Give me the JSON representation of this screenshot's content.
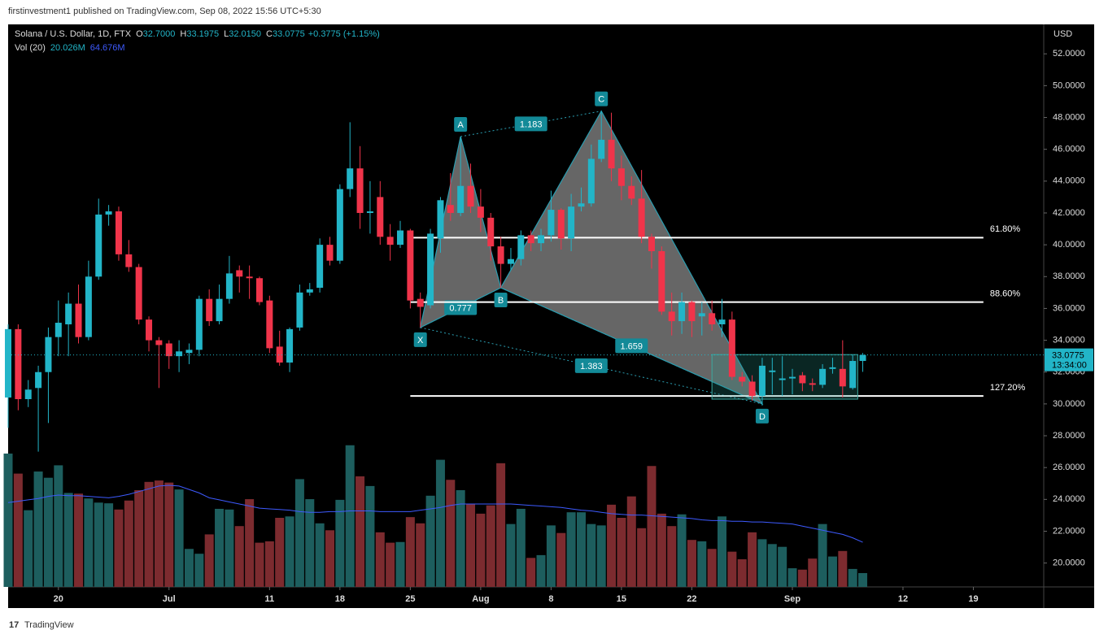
{
  "header": {
    "publisher": "firstinvestment1 published on TradingView.com, Sep 08, 2022 15:56 UTC+5:30",
    "footer": "TradingView"
  },
  "chart_data": {
    "type": "candlestick",
    "title": "Solana / U.S. Dollar, 1D, FTX",
    "ohlc_legend": [
      {
        "label": "O",
        "value": "32.7000"
      },
      {
        "label": "H",
        "value": "33.1975"
      },
      {
        "label": "L",
        "value": "32.0150"
      },
      {
        "label": "C",
        "value": "33.0775"
      }
    ],
    "change": "+0.3775 (+1.15%)",
    "volume_legend": {
      "label": "Vol (20)",
      "value": "20.026M",
      "ma": "64.676M"
    },
    "axis_unit": "USD",
    "last_price": {
      "value": 33.0775,
      "label": "33.0775",
      "countdown": "13:34:00"
    },
    "up_color": "#22b5c8",
    "down_color": "#f0344a",
    "xlim": [
      0,
      103
    ],
    "xticks": [
      {
        "value": 5,
        "label": "20"
      },
      {
        "value": 16,
        "label": "Jul"
      },
      {
        "value": 26,
        "label": "11"
      },
      {
        "value": 33,
        "label": "18"
      },
      {
        "value": 40,
        "label": "25"
      },
      {
        "value": 47,
        "label": "Aug"
      },
      {
        "value": 54,
        "label": "8"
      },
      {
        "value": 61,
        "label": "15"
      },
      {
        "value": 68,
        "label": "22"
      },
      {
        "value": 78,
        "label": "Sep"
      },
      {
        "value": 89,
        "label": "12"
      },
      {
        "value": 96,
        "label": "19"
      }
    ],
    "ylim": [
      18.5,
      53.85
    ],
    "yticks": [
      {
        "value": 20,
        "label": "20.0000"
      },
      {
        "value": 22,
        "label": "22.0000"
      },
      {
        "value": 24,
        "label": "24.0000"
      },
      {
        "value": 26,
        "label": "26.0000"
      },
      {
        "value": 28,
        "label": "28.0000"
      },
      {
        "value": 30,
        "label": "30.0000"
      },
      {
        "value": 32,
        "label": "32.0000"
      },
      {
        "value": 34,
        "label": "34.0000"
      },
      {
        "value": 36,
        "label": "36.0000"
      },
      {
        "value": 38,
        "label": "38.0000"
      },
      {
        "value": 40,
        "label": "40.0000"
      },
      {
        "value": 42,
        "label": "42.0000"
      },
      {
        "value": 44,
        "label": "44.0000"
      },
      {
        "value": 46,
        "label": "46.0000"
      },
      {
        "value": 48,
        "label": "48.0000"
      },
      {
        "value": 50,
        "label": "50.0000"
      },
      {
        "value": 52,
        "label": "52.0000"
      }
    ],
    "candles": {
      "open": [
        30.4,
        34.7,
        30.3,
        31,
        32,
        34.2,
        35,
        36.3,
        34.2,
        38,
        41.9,
        42.1,
        39.4,
        38.6,
        35.3,
        34,
        33.8,
        33,
        33.2,
        33.4,
        36.6,
        35.2,
        36.6,
        38.4,
        38,
        37.9,
        36.5,
        33.6,
        32.6,
        34.8,
        37,
        37.3,
        40,
        39,
        43.5,
        44.8,
        42,
        43,
        40.5,
        40,
        40.9,
        36.6,
        36.2,
        40.4,
        42.5,
        42,
        43.7,
        42.4,
        41.7,
        39.9,
        38.8,
        39.1,
        40.6,
        40.1,
        40.6,
        42.2,
        40.4,
        42.4,
        42.6,
        45.4,
        46.6,
        44.8,
        43.7,
        42.9,
        40.5,
        39.6,
        35.8,
        35.2,
        36.4,
        35.5,
        35.7,
        35,
        35.3,
        31.7,
        31.4,
        30.5,
        32,
        31.5,
        31.6,
        31.8,
        31.3,
        31.2,
        32.2,
        32.2,
        31,
        32.7
      ],
      "high": [
        35,
        35,
        31.5,
        32.4,
        34.8,
        36.5,
        37,
        37.5,
        39,
        42.9,
        42.5,
        42.4,
        40.3,
        38.8,
        35.5,
        34.2,
        34,
        34,
        33.8,
        36.8,
        37.2,
        37.5,
        39.3,
        38.7,
        38.7,
        38,
        36.8,
        34.6,
        34.8,
        37.5,
        37.6,
        40.4,
        40.5,
        43.8,
        47.7,
        46.2,
        44,
        44,
        41.3,
        41.5,
        41,
        37,
        41,
        43,
        44.5,
        46.8,
        45.1,
        43.5,
        42,
        40.5,
        39.8,
        40.9,
        40.9,
        41,
        43.4,
        42.3,
        43.2,
        43.6,
        46.3,
        48.4,
        48.3,
        45.6,
        44.3,
        44.7,
        40.7,
        39.9,
        37,
        37,
        36.5,
        36.4,
        36.5,
        36.6,
        35.8,
        32,
        31.8,
        32.9,
        32.9,
        33,
        32.2,
        32,
        31.6,
        32.5,
        32.9,
        34,
        33.1,
        33.1975
      ],
      "low": [
        28.5,
        29.6,
        29.8,
        27,
        28.8,
        33,
        33,
        33.8,
        34,
        37.8,
        41.2,
        39,
        38.3,
        35,
        33.3,
        31,
        32.2,
        32,
        32.5,
        33,
        34.9,
        35,
        36.3,
        37,
        36.6,
        36.2,
        33.2,
        32.4,
        32,
        34.6,
        36.8,
        37,
        38.7,
        38.8,
        43,
        41,
        40.7,
        40,
        39,
        39.8,
        36,
        34.8,
        36,
        39.5,
        41.5,
        41.8,
        42,
        40.8,
        39,
        37.3,
        38.4,
        38.7,
        39.6,
        39.6,
        40.2,
        39.7,
        39.6,
        42.1,
        42.4,
        45.2,
        44,
        42.8,
        42.5,
        40.1,
        38.5,
        35.6,
        34.3,
        34.4,
        34.2,
        34.3,
        34.6,
        34.2,
        31.5,
        31.1,
        30.2,
        29.9,
        30.6,
        30.5,
        30.6,
        30.8,
        30.8,
        31,
        31.9,
        30.4,
        30.9,
        32.015
      ],
      "close": [
        34.7,
        30.3,
        30.9,
        32,
        34.2,
        35.1,
        36.3,
        34.2,
        38,
        41.9,
        42.1,
        39.4,
        38.6,
        35.3,
        34,
        33.7,
        33,
        33.3,
        33.4,
        36.6,
        35.2,
        36.6,
        38.2,
        38,
        37.9,
        36.4,
        33.5,
        32.6,
        34.7,
        37,
        37.2,
        40,
        39,
        43.5,
        44.8,
        42,
        42.1,
        40.5,
        40,
        40.9,
        36.5,
        36.1,
        40.7,
        42.8,
        42,
        43.7,
        42.4,
        41.7,
        39.9,
        38.8,
        39.1,
        40.6,
        40.1,
        40.6,
        42.2,
        40.4,
        42.4,
        42.6,
        45.4,
        46.6,
        44.8,
        43.7,
        42.9,
        40.5,
        39.6,
        35.8,
        35.2,
        36.4,
        35.2,
        35.7,
        35,
        35.3,
        31.7,
        31.4,
        30.5,
        32.4,
        32.1,
        31.6,
        31.7,
        31.3,
        31.2,
        32.2,
        32.3,
        31.1,
        32.7,
        33.0775
      ]
    },
    "volume": {
      "ylim": [
        0,
        240
      ],
      "up_color": "#1d5e5e",
      "down_color": "#7c2b2f",
      "ma_color": "#3d5afe",
      "values": [
        193,
        164,
        111,
        167,
        158,
        176,
        136,
        135,
        128,
        122,
        121,
        112,
        125,
        140,
        152,
        154,
        151,
        141,
        55,
        48,
        76,
        113,
        112,
        88,
        127,
        64,
        66,
        100,
        102,
        156,
        127,
        92,
        82,
        126,
        205,
        160,
        146,
        79,
        64,
        65,
        101,
        92,
        132,
        184,
        155,
        140,
        120,
        106,
        118,
        179,
        91,
        113,
        42,
        46,
        89,
        78,
        108,
        108,
        91,
        89,
        119,
        100,
        131,
        85,
        175,
        106,
        88,
        105,
        68,
        66,
        55,
        102,
        51,
        40,
        79,
        69,
        62,
        58,
        27,
        25,
        41,
        91,
        44,
        52,
        26,
        20.026
      ],
      "ma": [
        122,
        124,
        126,
        128,
        131,
        133,
        132,
        132,
        131,
        130,
        129,
        131,
        134,
        138,
        142,
        146,
        147,
        146,
        141,
        136,
        129,
        126,
        123,
        120,
        117,
        114,
        113,
        112,
        111,
        109,
        108,
        108,
        109,
        109,
        110,
        110,
        110,
        109,
        109,
        109,
        109,
        111,
        113,
        115,
        118,
        120,
        120,
        120,
        120,
        120,
        120,
        119,
        118,
        117,
        116,
        115,
        113,
        111,
        110,
        108,
        106,
        105,
        104,
        104,
        103,
        102,
        101,
        100,
        99,
        97,
        96,
        96,
        95,
        95,
        94,
        94,
        93,
        92,
        91,
        88,
        85,
        82,
        79,
        76,
        71,
        64.676
      ]
    },
    "pattern": {
      "points": [
        {
          "label": "X",
          "x": 41,
          "y": 34.8
        },
        {
          "label": "A",
          "x": 45,
          "y": 46.8
        },
        {
          "label": "B",
          "x": 49,
          "y": 37.3
        },
        {
          "label": "C",
          "x": 59,
          "y": 48.4
        },
        {
          "label": "D",
          "x": 75,
          "y": 30
        }
      ],
      "ratios": [
        {
          "label": 0.777,
          "from": 0,
          "to": 2
        },
        {
          "label": 1.183,
          "from": 1,
          "to": 3
        },
        {
          "label": 1.659,
          "from": 2,
          "to": 4
        },
        {
          "label": 1.383,
          "from": 0,
          "to": 4
        }
      ]
    },
    "levels": {
      "x0": 40,
      "x1": 97,
      "items": [
        {
          "label": "61.80%",
          "price": 40.45
        },
        {
          "label": "88.60%",
          "price": 36.4
        },
        {
          "label": "127.20%",
          "price": 30.5
        }
      ]
    },
    "box": {
      "x0": 70,
      "x1": 84.5,
      "y0": 30.3,
      "y1": 33.1
    }
  }
}
